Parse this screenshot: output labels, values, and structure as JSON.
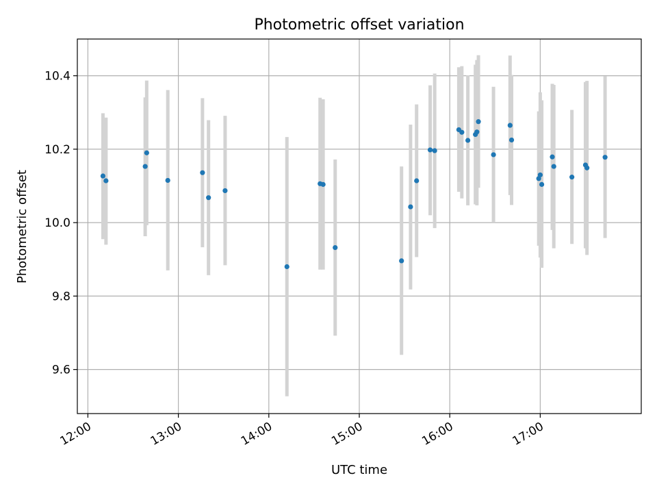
{
  "chart_data": {
    "type": "scatter",
    "title": "Photometric offset variation",
    "xlabel": "UTC time",
    "ylabel": "Photometric offset",
    "xlim": [
      "11:53",
      "18:07"
    ],
    "ylim": [
      9.48,
      10.5
    ],
    "xticks": [
      "12:00",
      "13:00",
      "14:00",
      "15:00",
      "16:00",
      "17:00"
    ],
    "yticks": [
      9.6,
      9.8,
      10.0,
      10.2,
      10.4
    ],
    "grid": true,
    "colors": {
      "point": "#1f77b4",
      "errorbar": "#d3d3d3",
      "grid": "#b0b0b0"
    },
    "points": [
      {
        "x": "12:10",
        "y": 10.127,
        "low": 9.955,
        "high": 10.298
      },
      {
        "x": "12:12",
        "y": 10.114,
        "low": 9.94,
        "high": 10.286
      },
      {
        "x": "12:38",
        "y": 10.153,
        "low": 9.963,
        "high": 10.341
      },
      {
        "x": "12:39",
        "y": 10.19,
        "low": 9.993,
        "high": 10.387
      },
      {
        "x": "12:53",
        "y": 10.115,
        "low": 9.87,
        "high": 10.361
      },
      {
        "x": "13:16",
        "y": 10.136,
        "low": 9.933,
        "high": 10.339
      },
      {
        "x": "13:20",
        "y": 10.068,
        "low": 9.857,
        "high": 10.279
      },
      {
        "x": "13:31",
        "y": 10.087,
        "low": 9.884,
        "high": 10.291
      },
      {
        "x": "14:12",
        "y": 9.88,
        "low": 9.527,
        "high": 10.233
      },
      {
        "x": "14:34",
        "y": 10.106,
        "low": 9.872,
        "high": 10.34
      },
      {
        "x": "14:36",
        "y": 10.104,
        "low": 9.872,
        "high": 10.336
      },
      {
        "x": "14:44",
        "y": 9.932,
        "low": 9.692,
        "high": 10.172
      },
      {
        "x": "15:28",
        "y": 9.896,
        "low": 9.64,
        "high": 10.153
      },
      {
        "x": "15:34",
        "y": 10.043,
        "low": 9.818,
        "high": 10.267
      },
      {
        "x": "15:38",
        "y": 10.114,
        "low": 9.906,
        "high": 10.322
      },
      {
        "x": "15:47",
        "y": 10.198,
        "low": 10.02,
        "high": 10.374
      },
      {
        "x": "15:50",
        "y": 10.196,
        "low": 9.985,
        "high": 10.406
      },
      {
        "x": "16:06",
        "y": 10.253,
        "low": 10.084,
        "high": 10.423
      },
      {
        "x": "16:08",
        "y": 10.246,
        "low": 10.066,
        "high": 10.426
      },
      {
        "x": "16:12",
        "y": 10.224,
        "low": 10.047,
        "high": 10.401
      },
      {
        "x": "16:17",
        "y": 10.24,
        "low": 10.05,
        "high": 10.43
      },
      {
        "x": "16:18",
        "y": 10.247,
        "low": 10.047,
        "high": 10.443
      },
      {
        "x": "16:19",
        "y": 10.275,
        "low": 10.095,
        "high": 10.456
      },
      {
        "x": "16:29",
        "y": 10.185,
        "low": 10.0,
        "high": 10.37
      },
      {
        "x": "16:40",
        "y": 10.265,
        "low": 10.075,
        "high": 10.455
      },
      {
        "x": "16:41",
        "y": 10.225,
        "low": 10.048,
        "high": 10.402
      },
      {
        "x": "16:59",
        "y": 10.12,
        "low": 9.937,
        "high": 10.303
      },
      {
        "x": "17:00",
        "y": 10.13,
        "low": 9.905,
        "high": 10.355
      },
      {
        "x": "17:01",
        "y": 10.104,
        "low": 9.877,
        "high": 10.333
      },
      {
        "x": "17:08",
        "y": 10.179,
        "low": 9.98,
        "high": 10.378
      },
      {
        "x": "17:09",
        "y": 10.153,
        "low": 9.93,
        "high": 10.375
      },
      {
        "x": "17:21",
        "y": 10.124,
        "low": 9.942,
        "high": 10.307
      },
      {
        "x": "17:30",
        "y": 10.157,
        "low": 9.93,
        "high": 10.383
      },
      {
        "x": "17:31",
        "y": 10.149,
        "low": 9.912,
        "high": 10.386
      },
      {
        "x": "17:43",
        "y": 10.178,
        "low": 9.958,
        "high": 10.399
      }
    ]
  }
}
